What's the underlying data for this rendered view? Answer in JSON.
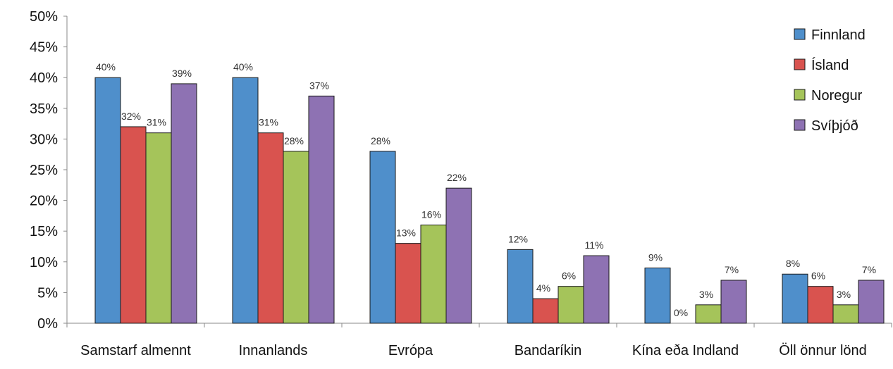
{
  "chart_data": {
    "type": "bar",
    "title": "",
    "xlabel": "",
    "ylabel": "",
    "ylim": [
      0,
      50
    ],
    "y_ticks": [
      "0%",
      "5%",
      "10%",
      "15%",
      "20%",
      "25%",
      "30%",
      "35%",
      "40%",
      "45%",
      "50%"
    ],
    "grid": false,
    "legend_position": "top-right",
    "categories": [
      "Samstarf almennt",
      "Innanlands",
      "Evrópa",
      "Bandaríkin",
      "Kína eða Indland",
      "Öll önnur lönd"
    ],
    "series": [
      {
        "name": "Finnland",
        "color": "#4f8fcb",
        "values": [
          40,
          40,
          28,
          12,
          9,
          8
        ],
        "labels": [
          "40%",
          "40%",
          "28%",
          "12%",
          "9%",
          "8%"
        ]
      },
      {
        "name": "Ísland",
        "color": "#d9534f",
        "values": [
          32,
          31,
          13,
          4,
          0,
          6
        ],
        "labels": [
          "32%",
          "31%",
          "13%",
          "4%",
          "0%",
          "6%"
        ]
      },
      {
        "name": "Noregur",
        "color": "#a5c45a",
        "values": [
          31,
          28,
          16,
          6,
          3,
          3
        ],
        "labels": [
          "31%",
          "28%",
          "16%",
          "6%",
          "3%",
          "3%"
        ]
      },
      {
        "name": "Svíþjóð",
        "color": "#8e72b3",
        "values": [
          39,
          37,
          22,
          11,
          7,
          7
        ],
        "labels": [
          "39%",
          "37%",
          "22%",
          "11%",
          "7%",
          "7%"
        ]
      }
    ]
  }
}
